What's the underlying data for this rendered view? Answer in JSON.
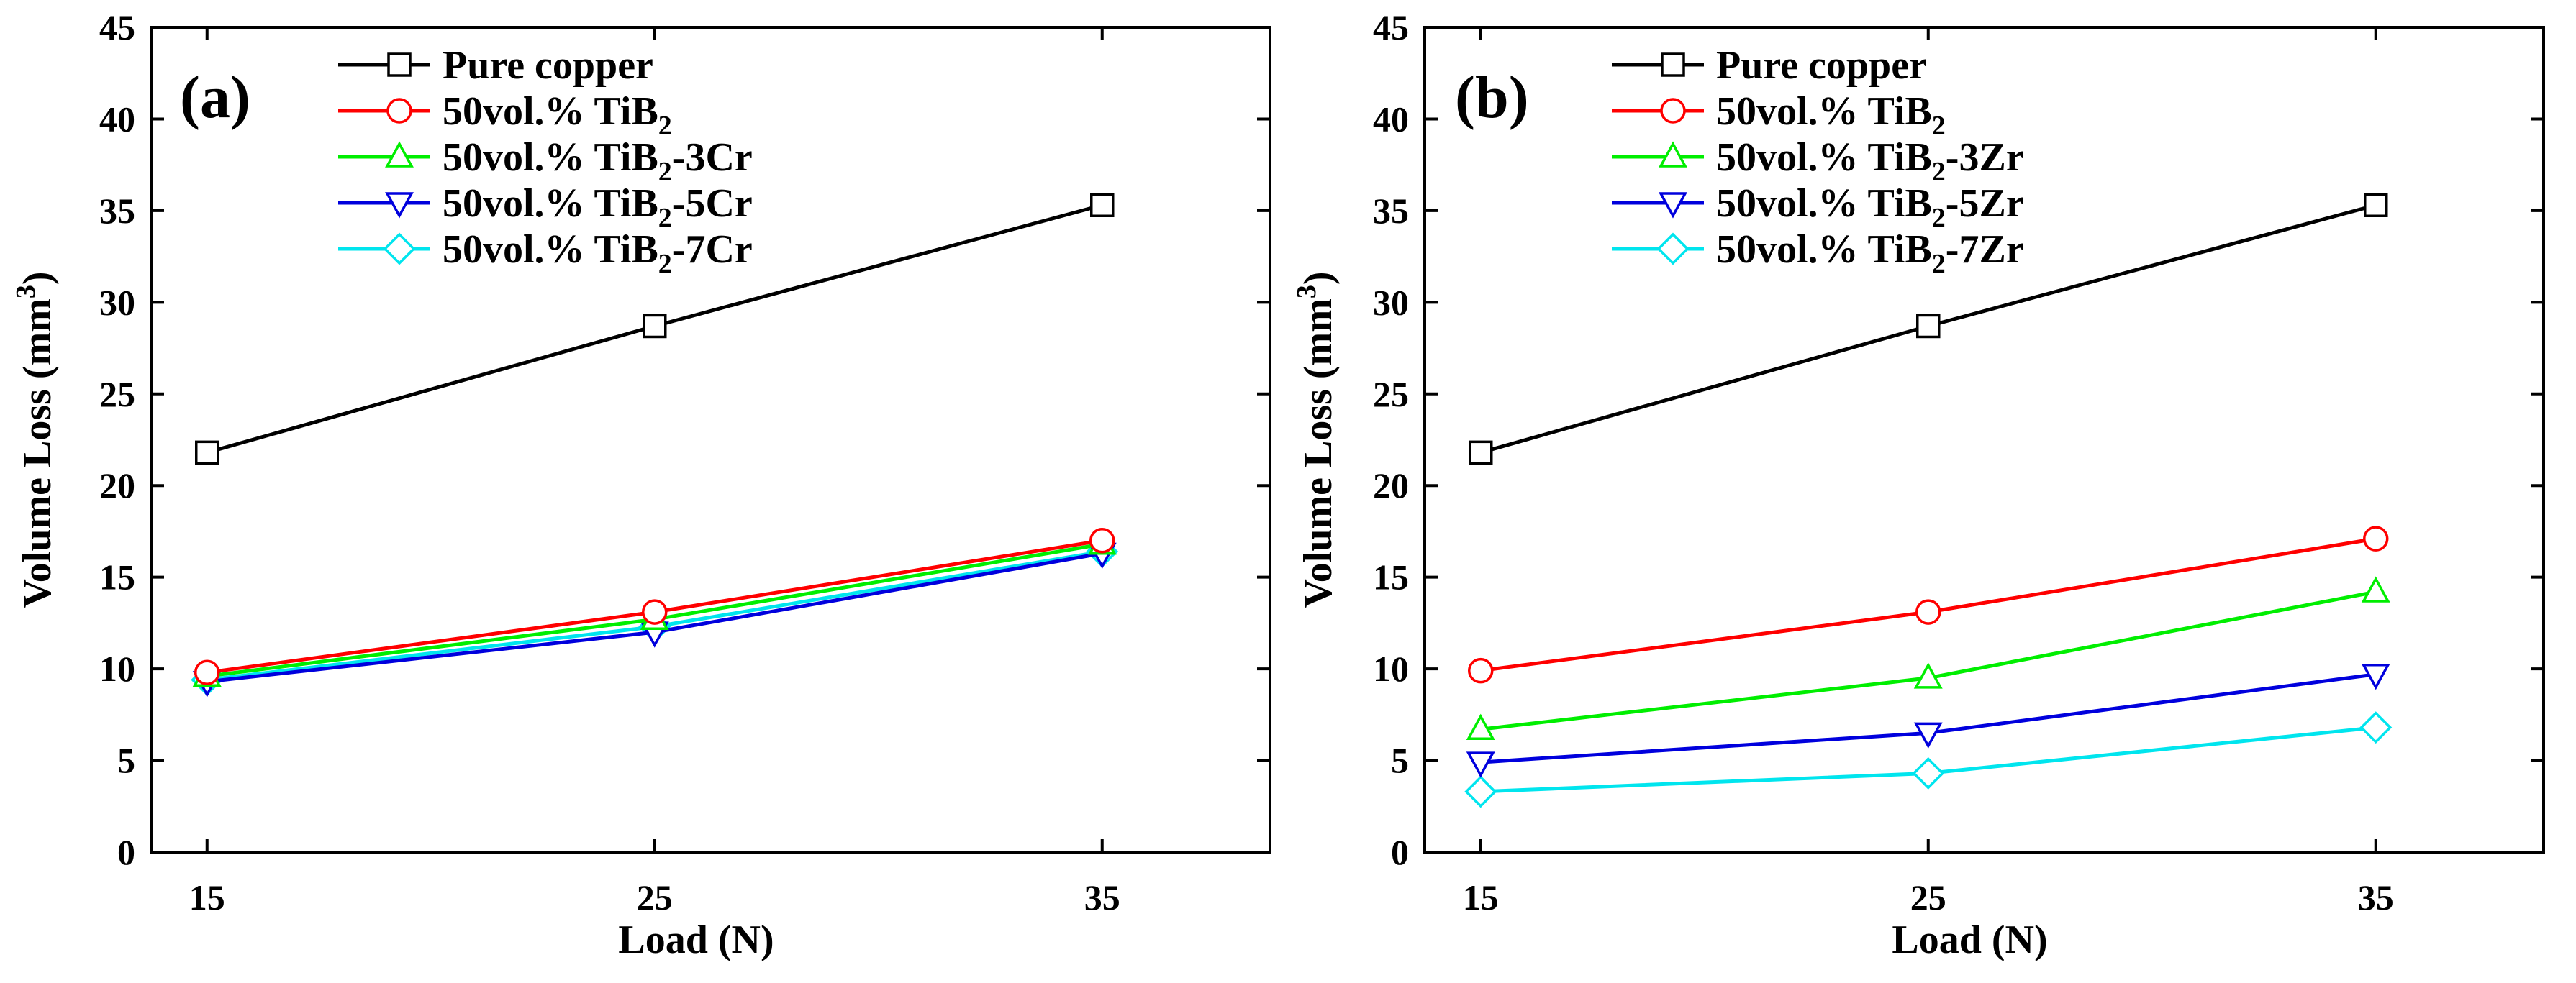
{
  "chart_data": [
    {
      "type": "line",
      "panel_label": "(a)",
      "xlabel": "Load (N)",
      "ylabel": "Volume Loss (mm",
      "ylabel_superscript": "3",
      "ylabel_close": ")",
      "x": [
        15,
        25,
        35
      ],
      "x_ticks": [
        "15",
        "25",
        "35"
      ],
      "xlim": [
        13.75,
        38.75
      ],
      "ylim": [
        0,
        45
      ],
      "y_ticks": [
        "0",
        "5",
        "10",
        "15",
        "20",
        "25",
        "30",
        "35",
        "40",
        "45"
      ],
      "legend_position": "top-left",
      "series": [
        {
          "name": "Pure copper",
          "label_parts": [
            "Pure copper"
          ],
          "color": "#000000",
          "marker": "square",
          "values": [
            21.8,
            28.7,
            35.3
          ]
        },
        {
          "name": "50vol.% TiB2",
          "label_parts": [
            "50vol.% TiB",
            "2",
            ""
          ],
          "color": "#ff0000",
          "marker": "circle",
          "values": [
            9.8,
            13.1,
            17.0
          ]
        },
        {
          "name": "50vol.% TiB2-3Cr",
          "label_parts": [
            "50vol.% TiB",
            "2",
            "-3Cr"
          ],
          "color": "#00ee00",
          "marker": "triangle-up",
          "values": [
            9.6,
            12.7,
            16.8
          ]
        },
        {
          "name": "50vol.% TiB2-5Cr",
          "label_parts": [
            "50vol.% TiB",
            "2",
            "-5Cr"
          ],
          "color": "#0000dd",
          "marker": "triangle-down",
          "values": [
            9.3,
            12.0,
            16.3
          ]
        },
        {
          "name": "50vol.% TiB2-7Cr",
          "label_parts": [
            "50vol.% TiB",
            "2",
            "-7Cr"
          ],
          "color": "#00e5ee",
          "marker": "diamond",
          "values": [
            9.4,
            12.3,
            16.4
          ]
        }
      ]
    },
    {
      "type": "line",
      "panel_label": "(b)",
      "xlabel": "Load (N)",
      "ylabel": "Volume Loss (mm",
      "ylabel_superscript": "3",
      "ylabel_close": ")",
      "x": [
        15,
        25,
        35
      ],
      "x_ticks": [
        "15",
        "25",
        "35"
      ],
      "xlim": [
        13.75,
        38.75
      ],
      "ylim": [
        0,
        45
      ],
      "y_ticks": [
        "0",
        "5",
        "10",
        "15",
        "20",
        "25",
        "30",
        "35",
        "40",
        "45"
      ],
      "legend_position": "top-left",
      "series": [
        {
          "name": "Pure copper",
          "label_parts": [
            "Pure copper"
          ],
          "color": "#000000",
          "marker": "square",
          "values": [
            21.8,
            28.7,
            35.3
          ]
        },
        {
          "name": "50vol.% TiB2",
          "label_parts": [
            "50vol.% TiB",
            "2",
            ""
          ],
          "color": "#ff0000",
          "marker": "circle",
          "values": [
            9.9,
            13.1,
            17.1
          ]
        },
        {
          "name": "50vol.% TiB2-3Zr",
          "label_parts": [
            "50vol.% TiB",
            "2",
            "-3Zr"
          ],
          "color": "#00ee00",
          "marker": "triangle-up",
          "values": [
            6.7,
            9.5,
            14.2
          ]
        },
        {
          "name": "50vol.% TiB2-5Zr",
          "label_parts": [
            "50vol.% TiB",
            "2",
            "-5Zr"
          ],
          "color": "#0000dd",
          "marker": "triangle-down",
          "values": [
            4.9,
            6.5,
            9.7
          ]
        },
        {
          "name": "50vol.% TiB2-7Zr",
          "label_parts": [
            "50vol.% TiB",
            "2",
            "-7Zr"
          ],
          "color": "#00e5ee",
          "marker": "diamond",
          "values": [
            3.3,
            4.3,
            6.8
          ]
        }
      ]
    }
  ]
}
